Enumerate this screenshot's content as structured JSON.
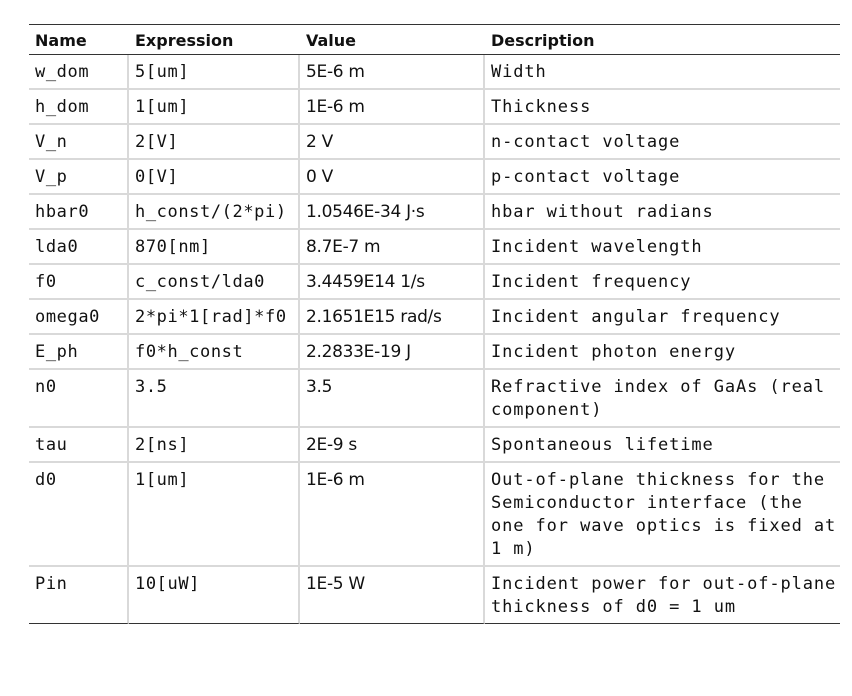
{
  "table": {
    "headers": {
      "name": "Name",
      "expression": "Expression",
      "value": "Value",
      "description": "Description"
    },
    "rows": [
      {
        "name": "w_dom",
        "expression": "5[um]",
        "value": "5E-6 m",
        "description": "Width"
      },
      {
        "name": "h_dom",
        "expression": "1[um]",
        "value": "1E-6 m",
        "description": "Thickness"
      },
      {
        "name": "V_n",
        "expression": "2[V]",
        "value": "2 V",
        "description": "n-contact voltage"
      },
      {
        "name": "V_p",
        "expression": "0[V]",
        "value": "0 V",
        "description": "p-contact voltage"
      },
      {
        "name": "hbar0",
        "expression": "h_const/(2*pi)",
        "value": "1.0546E-34 J·s",
        "description": "hbar without radians"
      },
      {
        "name": "lda0",
        "expression": "870[nm]",
        "value": "8.7E-7 m",
        "description": "Incident wavelength"
      },
      {
        "name": "f0",
        "expression": "c_const/lda0",
        "value": "3.4459E14 1/s",
        "description": "Incident frequency"
      },
      {
        "name": "omega0",
        "expression": "2*pi*1[rad]*f0",
        "value": "2.1651E15 rad/s",
        "description": "Incident angular frequency"
      },
      {
        "name": "E_ph",
        "expression": "f0*h_const",
        "value": "2.2833E-19 J",
        "description": "Incident photon energy"
      },
      {
        "name": "n0",
        "expression": "3.5",
        "value": "3.5",
        "description": "Refractive index of GaAs (real component)"
      },
      {
        "name": "tau",
        "expression": "2[ns]",
        "value": "2E-9 s",
        "description": "Spontaneous lifetime"
      },
      {
        "name": "d0",
        "expression": "1[um]",
        "value": "1E-6 m",
        "description": "Out-of-plane thickness for the Semiconductor interface (the one for wave optics is fixed at 1 m)"
      },
      {
        "name": "Pin",
        "expression": "10[uW]",
        "value": "1E-5 W",
        "description": "Incident power for out-of-plane thickness of d0 = 1 um"
      }
    ]
  }
}
